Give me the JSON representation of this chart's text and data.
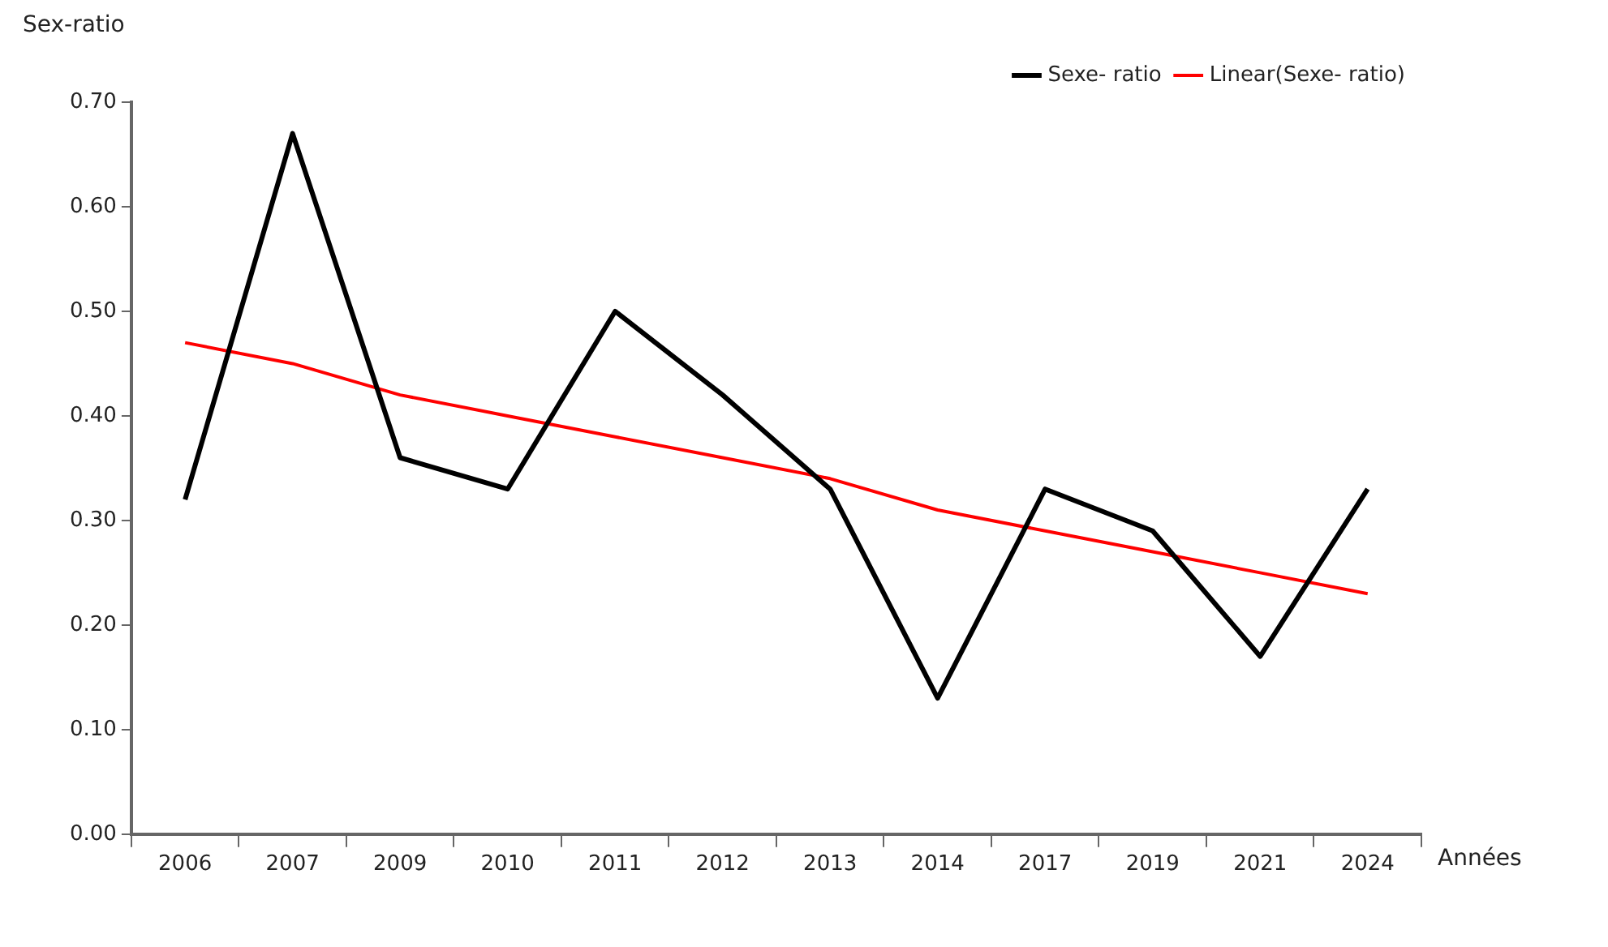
{
  "chart_data": {
    "type": "line",
    "xlabel": "Années",
    "ylabel": "Sex-ratio",
    "categories": [
      "2006",
      "2007",
      "2009",
      "2010",
      "2011",
      "2012",
      "2013",
      "2014",
      "2017",
      "2019",
      "2021",
      "2024"
    ],
    "series": [
      {
        "name": "Sexe- ratio",
        "color": "#000000",
        "values": [
          0.32,
          0.67,
          0.36,
          0.33,
          0.5,
          0.42,
          0.33,
          0.13,
          0.33,
          0.29,
          0.17,
          0.33
        ]
      },
      {
        "name": "Linear(Sexe- ratio)",
        "color": "#ff0000",
        "values": [
          0.47,
          0.45,
          0.42,
          0.4,
          0.38,
          0.36,
          0.34,
          0.31,
          0.29,
          0.27,
          0.25,
          0.23
        ]
      }
    ],
    "ylim": [
      0,
      0.7
    ],
    "yticks": [
      {
        "value": 0,
        "label": "0.00"
      },
      {
        "value": 0.1,
        "label": "0.10"
      },
      {
        "value": 0.2,
        "label": "0.20"
      },
      {
        "value": 0.3,
        "label": "0.30"
      },
      {
        "value": 0.4,
        "label": "0.40"
      },
      {
        "value": 0.5,
        "label": "0.50"
      },
      {
        "value": 0.6,
        "label": "0.60"
      },
      {
        "value": 0.7,
        "label": "0.70"
      }
    ],
    "grid": false,
    "legend": "top right",
    "marker": "none",
    "line_style": "solid"
  }
}
